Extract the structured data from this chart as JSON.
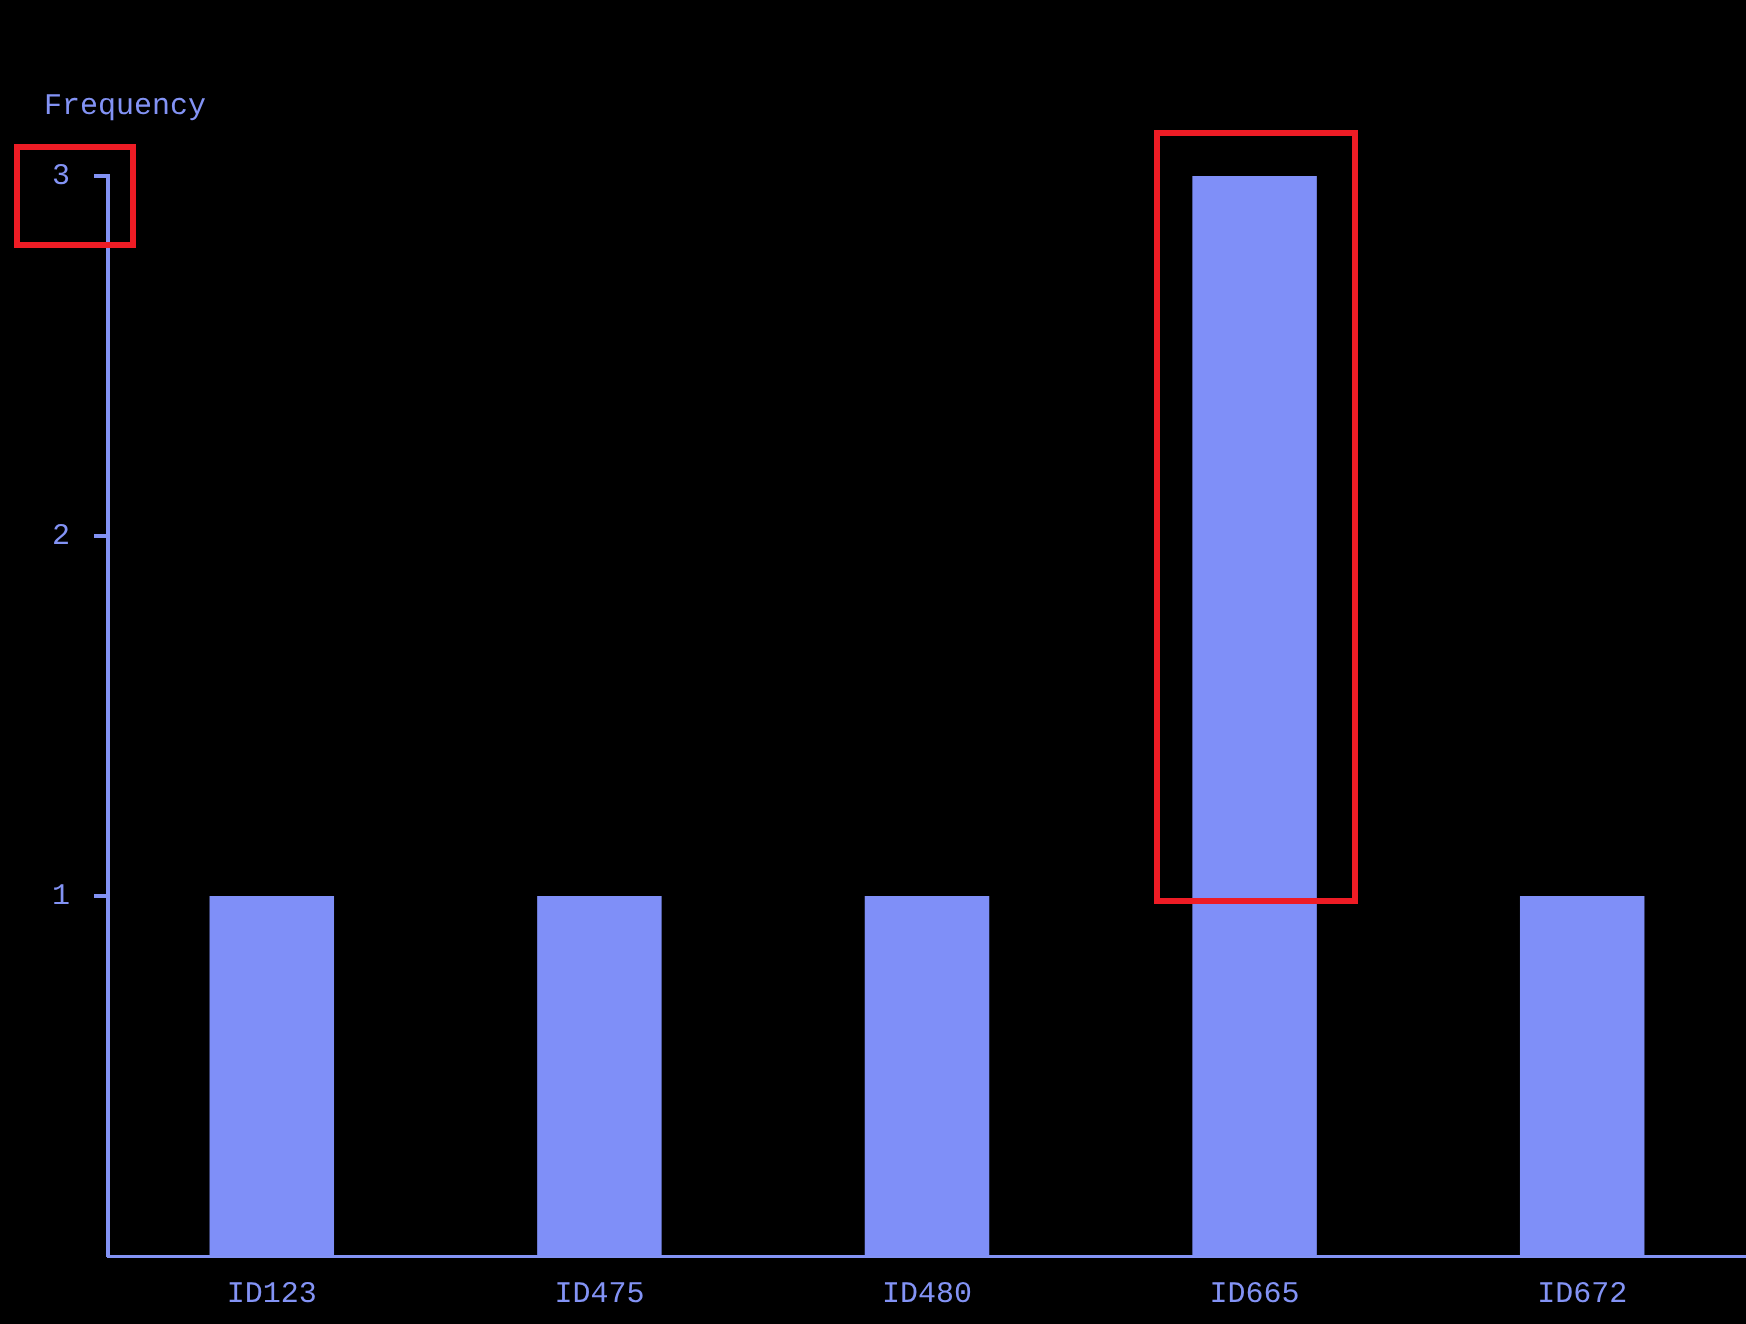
{
  "chart_data": {
    "type": "bar",
    "ylabel": "Frequency",
    "categories": [
      "ID123",
      "ID475",
      "ID480",
      "ID665",
      "ID672"
    ],
    "values": [
      1,
      1,
      1,
      3,
      1
    ],
    "color": "#7f8ff8",
    "ylim": [
      0,
      3
    ],
    "yticks": [
      1,
      2,
      3
    ],
    "grid": false,
    "legend": false
  }
}
